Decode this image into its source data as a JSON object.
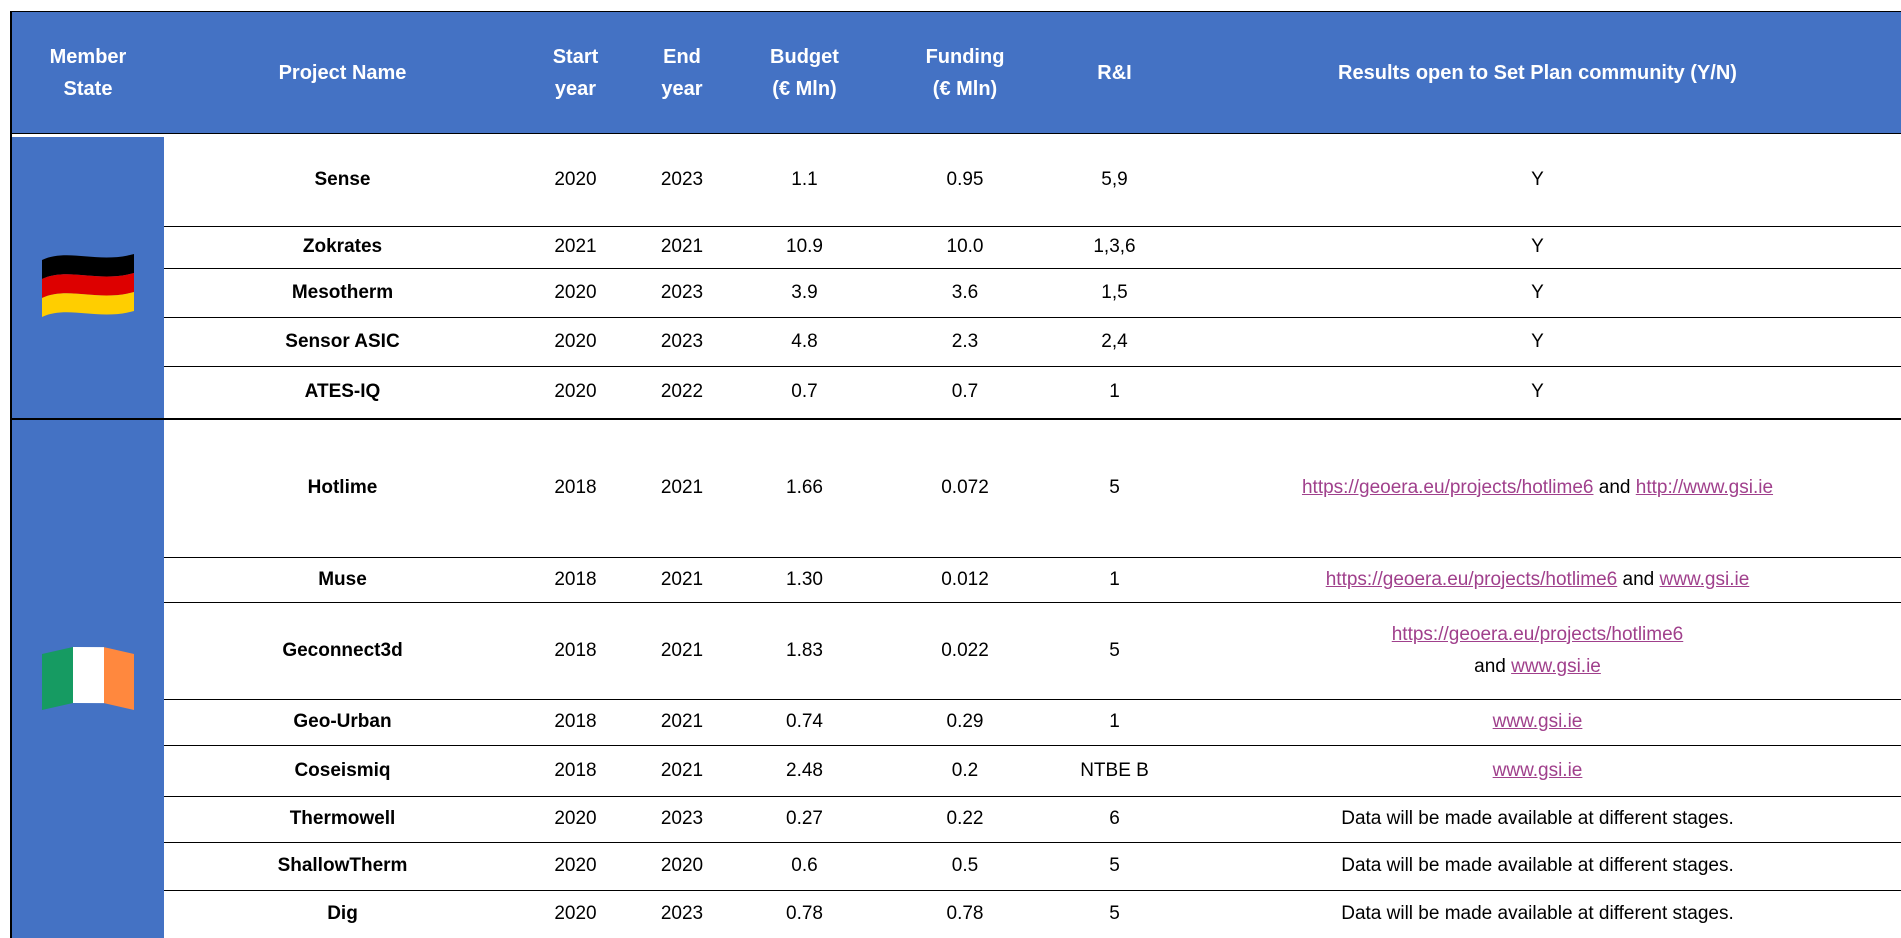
{
  "table": {
    "header": [
      [
        "Member",
        "State"
      ],
      [
        "Project Name"
      ],
      [
        "Start",
        "year"
      ],
      [
        "End",
        "year"
      ],
      [
        "Budget",
        "(€ Mln)"
      ],
      [
        "Funding",
        "(€ Mln)"
      ],
      [
        "R&I"
      ],
      [
        "Results open to Set Plan community (Y/N)"
      ]
    ],
    "groups": [
      {
        "flag": "germany",
        "rows": [
          {
            "name": "Sense",
            "start": 2020,
            "end": 2023,
            "budget": "1.1",
            "funding": "0.95",
            "ri": "5,9",
            "results": [
              {
                "text": "Y"
              }
            ]
          },
          {
            "name": "Zokrates",
            "start": 2021,
            "end": 2021,
            "budget": "10.9",
            "funding": "10.0",
            "ri": "1,3,6",
            "results": [
              {
                "text": "Y"
              }
            ]
          },
          {
            "name": "Mesotherm",
            "start": 2020,
            "end": 2023,
            "budget": "3.9",
            "funding": "3.6",
            "ri": "1,5",
            "results": [
              {
                "text": "Y"
              }
            ]
          },
          {
            "name": "Sensor ASIC",
            "start": 2020,
            "end": 2023,
            "budget": "4.8",
            "funding": "2.3",
            "ri": "2,4",
            "results": [
              {
                "text": "Y"
              }
            ]
          },
          {
            "name": "ATES-IQ",
            "start": 2020,
            "end": 2022,
            "budget": "0.7",
            "funding": "0.7",
            "ri": "1",
            "results": [
              {
                "text": "Y"
              }
            ]
          }
        ]
      },
      {
        "flag": "ireland",
        "rows": [
          {
            "name": "Hotlime",
            "start": 2018,
            "end": 2021,
            "budget": "1.66",
            "funding": "0.072",
            "ri": "5",
            "results": [
              {
                "text": "https://geoera.eu/projects/hotlime6",
                "link": true
              },
              {
                "text": "and"
              },
              {
                "text": "http://www.gsi.ie",
                "link": true
              }
            ]
          },
          {
            "name": "Muse",
            "start": 2018,
            "end": 2021,
            "budget": "1.30",
            "funding": "0.012",
            "ri": "1",
            "results": [
              {
                "text": "https://geoera.eu/projects/hotlime6",
                "link": true
              },
              {
                "text": "and"
              },
              {
                "text": "www.gsi.ie",
                "link": true
              }
            ]
          },
          {
            "name": "Geconnect3d",
            "start": 2018,
            "end": 2021,
            "budget": "1.83",
            "funding": "0.022",
            "ri": "5",
            "results": [
              {
                "text": "https://geoera.eu/projects/hotlime6",
                "link": true
              },
              {
                "text": "and",
                "newline": true
              },
              {
                "text": "www.gsi.ie",
                "link": true
              }
            ]
          },
          {
            "name": "Geo-Urban",
            "start": 2018,
            "end": 2021,
            "budget": "0.74",
            "funding": "0.29",
            "ri": "1",
            "results": [
              {
                "text": "www.gsi.ie",
                "link": true
              }
            ]
          },
          {
            "name": "Coseismiq",
            "start": 2018,
            "end": 2021,
            "budget": "2.48",
            "funding": "0.2",
            "ri": "NTBE B",
            "results": [
              {
                "text": "www.gsi.ie",
                "link": true
              }
            ]
          },
          {
            "name": "Thermowell",
            "start": 2020,
            "end": 2023,
            "budget": "0.27",
            "funding": "0.22",
            "ri": "6",
            "results": [
              {
                "text": "Data will be made available at different stages."
              }
            ]
          },
          {
            "name": "ShallowTherm",
            "start": 2020,
            "end": 2020,
            "budget": "0.6",
            "funding": "0.5",
            "ri": "5",
            "results": [
              {
                "text": "Data will be made available at different stages."
              }
            ]
          },
          {
            "name": "Dig",
            "start": 2020,
            "end": 2023,
            "budget": "0.78",
            "funding": "0.78",
            "ri": "5",
            "results": [
              {
                "text": "Data will be made available at different stages."
              }
            ]
          }
        ]
      }
    ]
  }
}
